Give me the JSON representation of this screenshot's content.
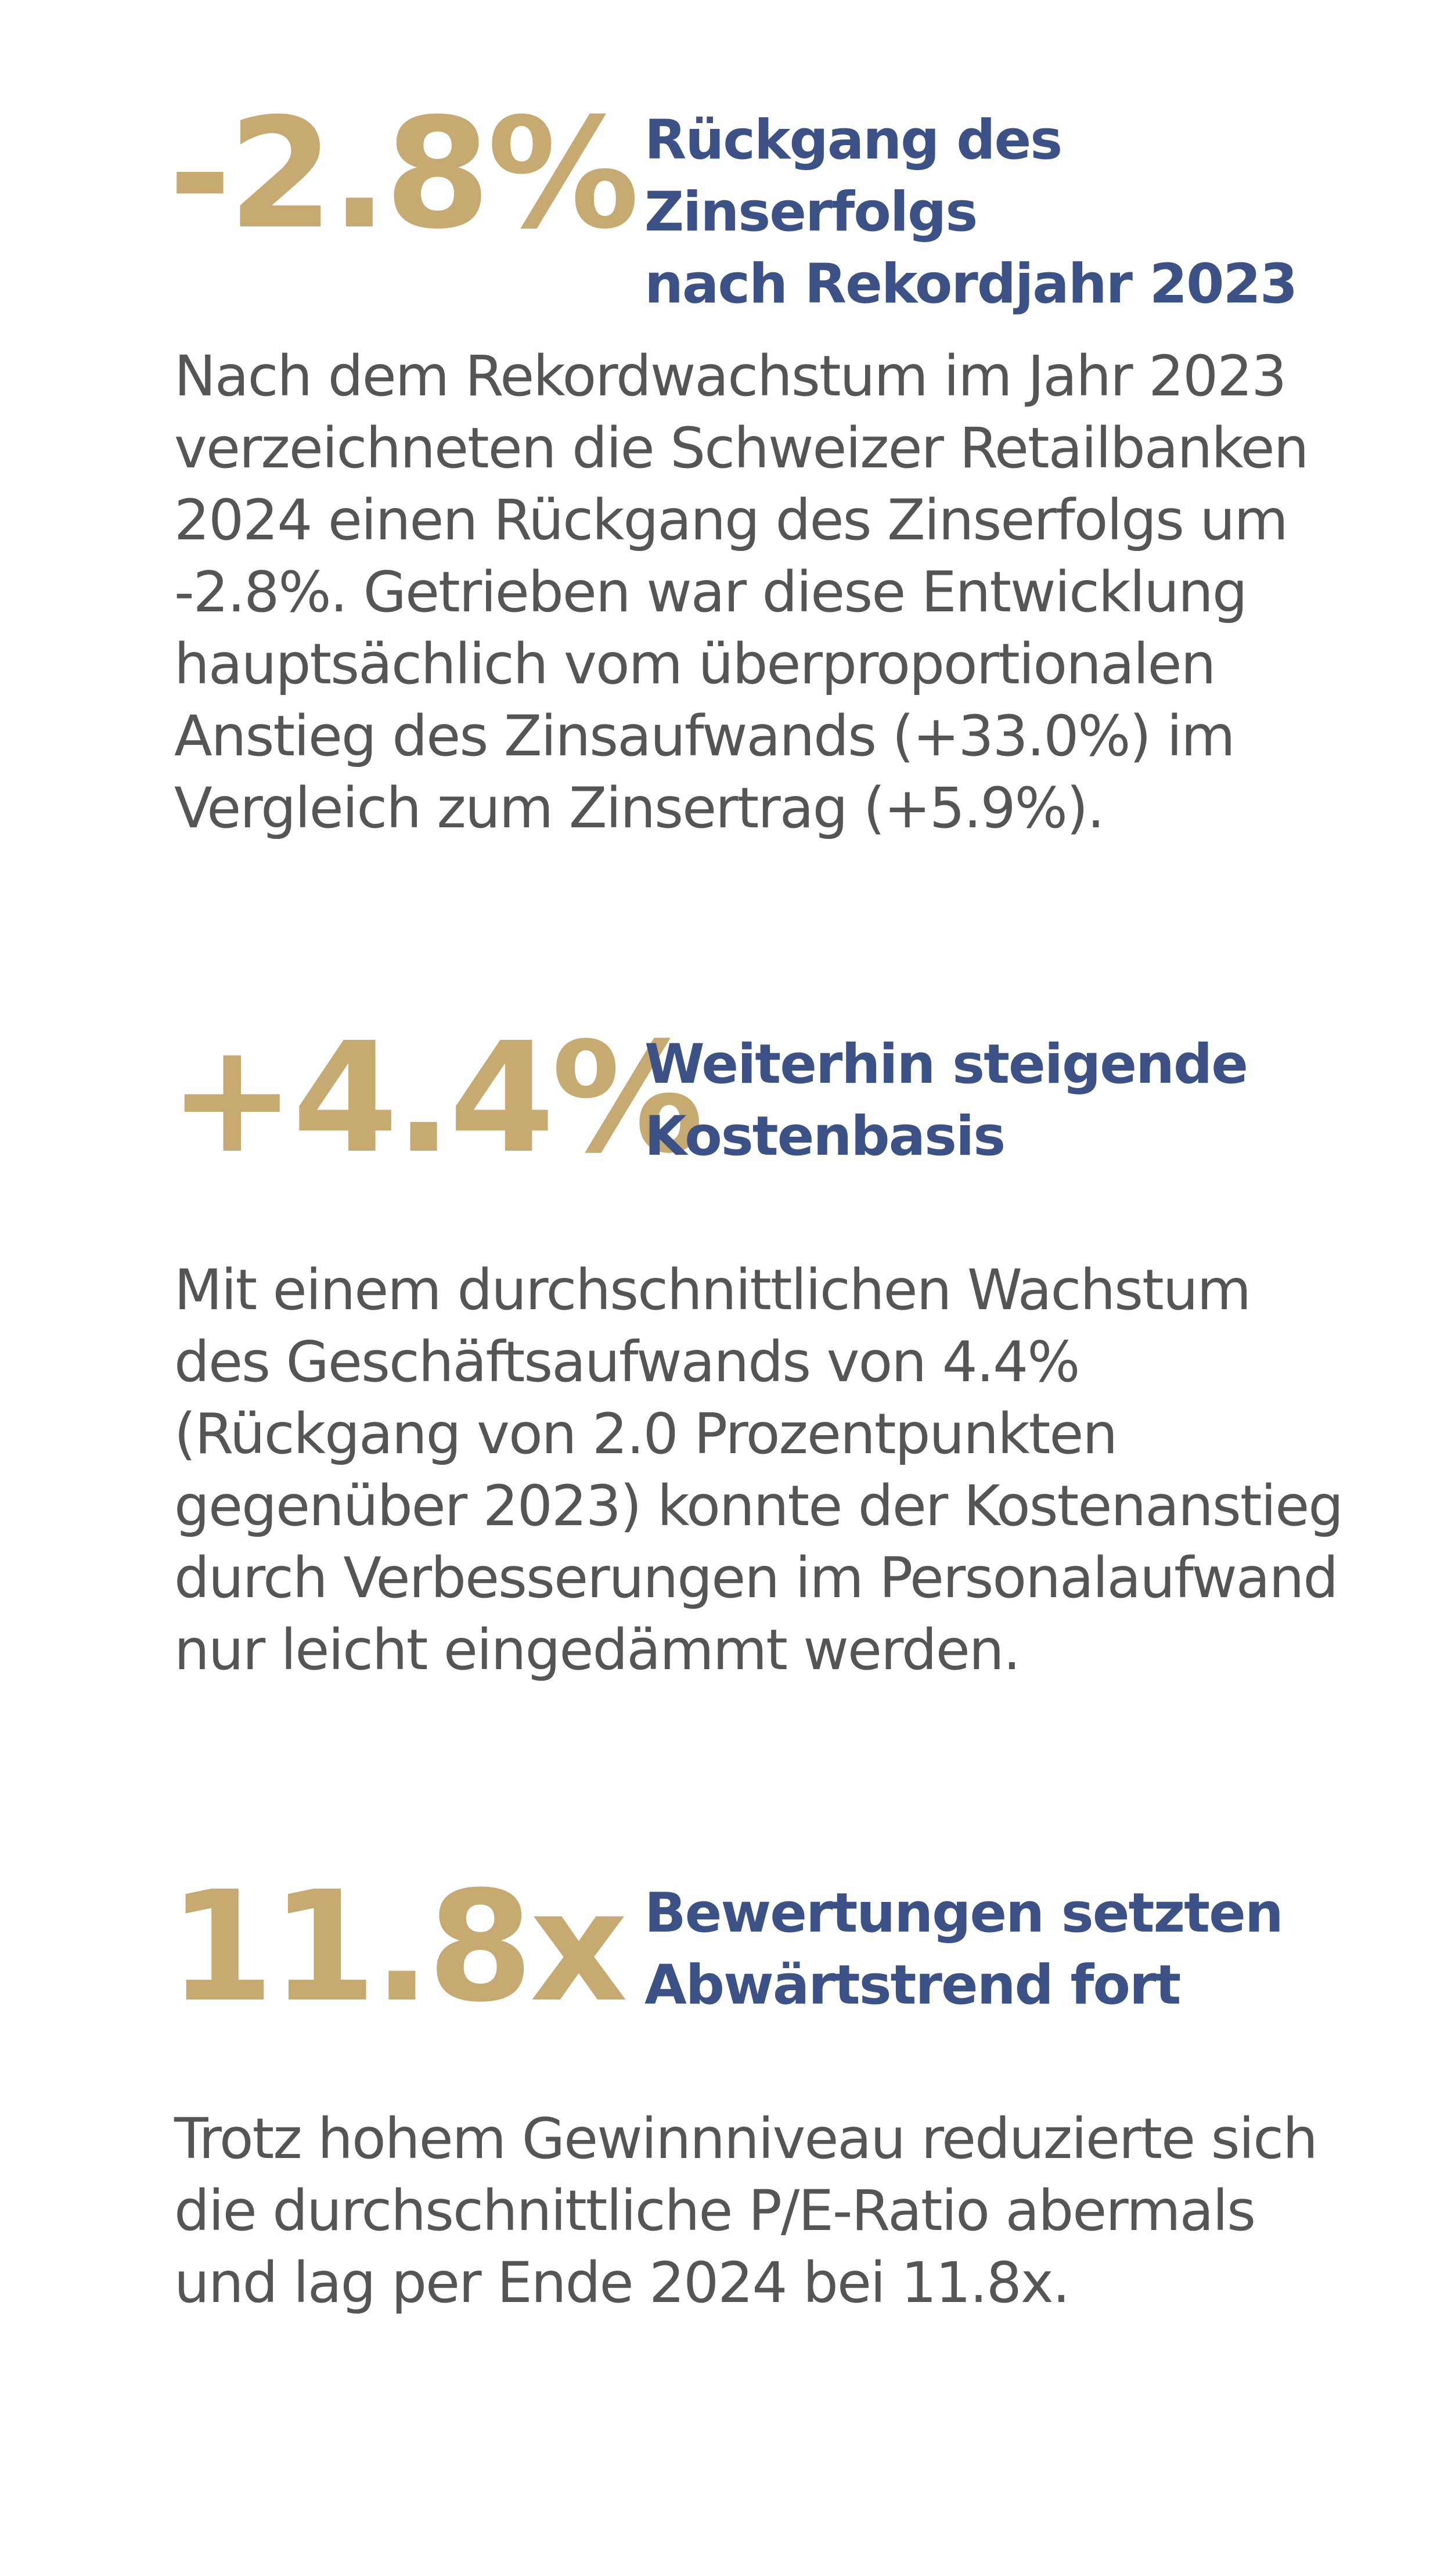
{
  "kpis": [
    {
      "value": "-2.8%",
      "title": "Rückgang des Zinserfolgs\nnach Rekordjahr 2023",
      "body": "Nach dem Rekordwachstum im Jahr 2023\nverzeichneten die Schweizer Retailbanken\n2024 einen Rückgang des Zinserfolgs um\n-2.8%. Getrieben war diese Entwicklung\nhauptsächlich vom überproportionalen\nAnstieg des Zinsaufwands (+33.0%) im\nVergleich zum Zinsertrag (+5.9%)."
    },
    {
      "value": "+4.4%",
      "title": "Weiterhin steigende\nKostenbasis",
      "body": "Mit einem durchschnittlichen Wachstum\ndes Geschäftsaufwands von 4.4%\n(Rückgang von 2.0 Prozentpunkten\ngegenüber 2023) konnte der Kostenanstieg\ndurch Verbesserungen im Personalaufwand\nnur leicht eingedämmt werden."
    },
    {
      "value": "11.8x",
      "title": "Bewertungen setzten\nAbwärtstrend fort",
      "body": "Trotz hohem Gewinnniveau reduzierte sich\ndie durchschnittliche P/E-Ratio abermals\nund lag per Ende 2024 bei 11.8x."
    }
  ],
  "colors": {
    "accent_gold": "#c6aa72",
    "title_blue": "#3c5186",
    "body_gray": "#555555",
    "background": "#ffffff"
  }
}
